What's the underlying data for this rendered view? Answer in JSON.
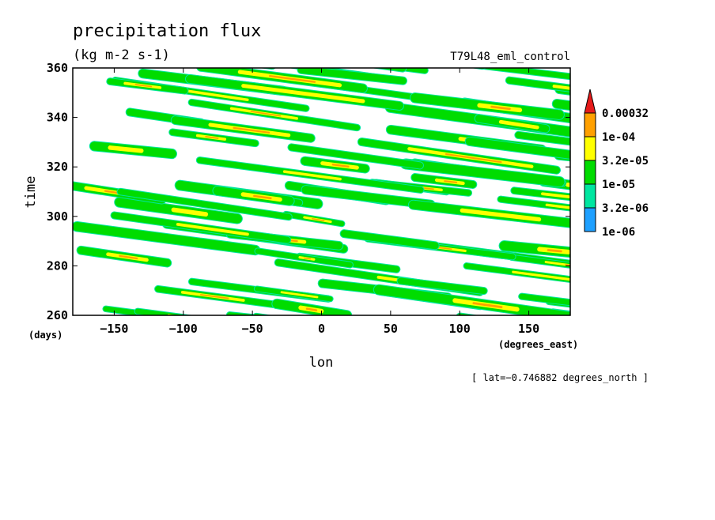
{
  "chart_data": {
    "type": "heatmap",
    "title": "precipitation flux",
    "units": "(kg m-2 s-1)",
    "run_label": "T79L48_eml_control",
    "xlabel": "lon",
    "ylabel": "time",
    "x_units": "(degrees_east)",
    "y_units": "(days)",
    "xlim": [
      -180,
      180
    ],
    "ylim": [
      260,
      360
    ],
    "x_ticks": [
      -150,
      -100,
      -50,
      0,
      50,
      100,
      150
    ],
    "y_ticks": [
      260,
      280,
      300,
      320,
      340,
      360
    ],
    "x_tick_labels": [
      "−150",
      "−100",
      "−50",
      "0",
      "50",
      "100",
      "150"
    ],
    "y_tick_labels": [
      "260",
      "280",
      "300",
      "320",
      "340",
      "360"
    ],
    "subtitle": "[ lat=−0.746882 degrees_north ]",
    "legend": {
      "placement": "right",
      "levels": [
        "1e-06",
        "3.2e-06",
        "1e-05",
        "3.2e-05",
        "1e-04",
        "0.00032"
      ],
      "colors": [
        "#1ea0ff",
        "#00e6a0",
        "#00dc00",
        "#ffff00",
        "#ffa000",
        "#e61a1a"
      ]
    },
    "pattern": {
      "description_free_values_only": true,
      "band_slope_days_per_degree": -0.075,
      "band_count": 24
    }
  }
}
